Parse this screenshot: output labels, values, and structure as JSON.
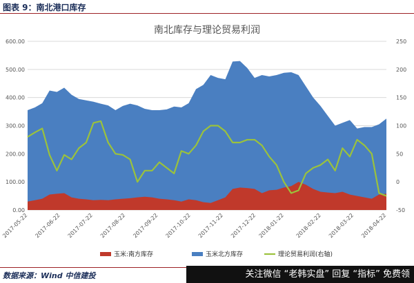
{
  "figure": {
    "label": "图表 9：南北港口库存",
    "source": "数据来源：Wind 中信建投",
    "watermark": "关注微信 “老韩实盘” 回复 “指标” 免费领"
  },
  "chart_data": {
    "type": "area",
    "title": "南北库存与理论贸易利润",
    "x": [
      "2017-05-22",
      "2017-05-29",
      "2017-06-05",
      "2017-06-12",
      "2017-06-19",
      "2017-06-26",
      "2017-07-03",
      "2017-07-10",
      "2017-07-17",
      "2017-07-24",
      "2017-07-31",
      "2017-08-07",
      "2017-08-14",
      "2017-08-21",
      "2017-08-28",
      "2017-09-04",
      "2017-09-11",
      "2017-09-18",
      "2017-09-25",
      "2017-10-02",
      "2017-10-09",
      "2017-10-16",
      "2017-10-23",
      "2017-10-30",
      "2017-11-06",
      "2017-11-13",
      "2017-11-20",
      "2017-11-27",
      "2017-12-04",
      "2017-12-11",
      "2017-12-18",
      "2017-12-25",
      "2018-01-01",
      "2018-01-08",
      "2018-01-15",
      "2018-01-22",
      "2018-01-29",
      "2018-02-05",
      "2018-02-12",
      "2018-02-19",
      "2018-02-26",
      "2018-03-05",
      "2018-03-12",
      "2018-03-19",
      "2018-03-26",
      "2018-04-02",
      "2018-04-09",
      "2018-04-16",
      "2018-04-23",
      "2018-04-30"
    ],
    "x_tick_labels": [
      "2017-05-22",
      "2017-06-22",
      "2017-07-22",
      "2017-08-22",
      "2017-09-22",
      "2017-10-22",
      "2017-11-22",
      "2017-12-22",
      "2018-01-22",
      "2018-02-22",
      "2018-03-22",
      "2018-04-22"
    ],
    "y_left": {
      "range": [
        0,
        600
      ],
      "ticks": [
        "0.00",
        "100.00",
        "200.00",
        "300.00",
        "400.00",
        "500.00",
        "600.00"
      ]
    },
    "y_right": {
      "range": [
        -50,
        250
      ],
      "ticks": [
        "-50",
        "0",
        "50",
        "100",
        "150",
        "200",
        "250"
      ]
    },
    "grid": true,
    "legend_placement": "bottom",
    "series": [
      {
        "name": "玉米:南方库存",
        "kind": "area",
        "axis": "left",
        "color": "#c0392b",
        "values": [
          30,
          35,
          40,
          55,
          58,
          60,
          45,
          40,
          38,
          35,
          36,
          35,
          38,
          40,
          42,
          45,
          47,
          45,
          40,
          38,
          35,
          30,
          38,
          35,
          28,
          25,
          35,
          45,
          75,
          80,
          78,
          75,
          60,
          70,
          72,
          80,
          85,
          100,
          90,
          75,
          65,
          62,
          60,
          65,
          55,
          50,
          45,
          40,
          55,
          58
        ]
      },
      {
        "name": "玉米北方库存",
        "kind": "area",
        "axis": "left",
        "color": "#4a7fc1",
        "values": [
          355,
          365,
          380,
          425,
          420,
          435,
          410,
          395,
          390,
          385,
          378,
          372,
          355,
          370,
          378,
          372,
          360,
          355,
          355,
          358,
          368,
          365,
          380,
          430,
          445,
          480,
          470,
          465,
          528,
          530,
          505,
          470,
          480,
          475,
          480,
          488,
          490,
          480,
          440,
          400,
          370,
          335,
          300,
          310,
          320,
          290,
          295,
          295,
          305,
          325
        ]
      },
      {
        "name": "理论贸易利润(右轴)",
        "kind": "line",
        "axis": "right",
        "color": "#9bc23c",
        "values": [
          80,
          88,
          95,
          48,
          20,
          48,
          40,
          60,
          70,
          105,
          108,
          70,
          50,
          48,
          40,
          0,
          20,
          20,
          35,
          25,
          15,
          55,
          50,
          65,
          90,
          100,
          100,
          90,
          70,
          70,
          75,
          75,
          65,
          45,
          30,
          0,
          -20,
          -15,
          15,
          25,
          30,
          40,
          20,
          60,
          45,
          75,
          65,
          50,
          -20,
          -25
        ]
      }
    ]
  }
}
